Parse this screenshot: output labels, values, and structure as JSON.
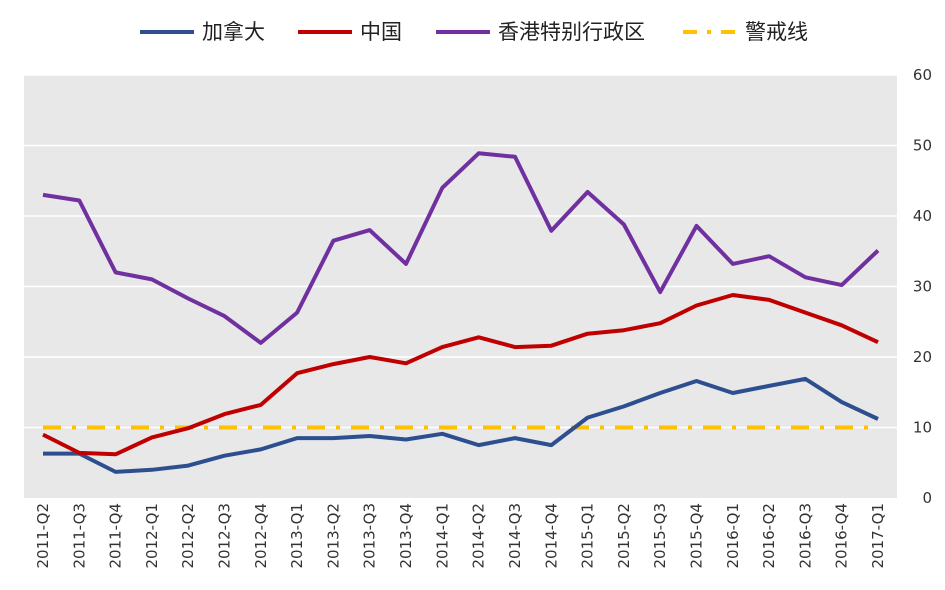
{
  "chart_data": {
    "type": "line",
    "title": "",
    "xlabel": "",
    "ylabel": "",
    "ylim": [
      0,
      60
    ],
    "yticks": [
      0,
      10,
      20,
      30,
      40,
      50,
      60
    ],
    "y_axis_side": "right",
    "grid": true,
    "legend_position": "top",
    "categories": [
      "2011-Q2",
      "2011-Q3",
      "2011-Q4",
      "2012-Q1",
      "2012-Q2",
      "2012-Q3",
      "2012-Q4",
      "2013-Q1",
      "2013-Q2",
      "2013-Q3",
      "2013-Q4",
      "2014-Q1",
      "2014-Q2",
      "2014-Q3",
      "2014-Q4",
      "2015-Q1",
      "2015-Q2",
      "2015-Q3",
      "2015-Q4",
      "2016-Q1",
      "2016-Q2",
      "2016-Q3",
      "2016-Q4",
      "2017-Q1"
    ],
    "series": [
      {
        "name": "加拿大",
        "color": "#2E4F8F",
        "style": "solid",
        "values": [
          6.3,
          6.3,
          3.7,
          4.0,
          4.6,
          6.0,
          6.9,
          8.5,
          8.5,
          8.8,
          8.3,
          9.1,
          7.5,
          8.5,
          7.5,
          11.4,
          13.0,
          14.9,
          16.6,
          14.9,
          15.9,
          16.9,
          13.6,
          11.2
        ]
      },
      {
        "name": "中国",
        "color": "#C00000",
        "style": "solid",
        "values": [
          9.0,
          6.4,
          6.2,
          8.6,
          9.9,
          11.9,
          13.2,
          17.7,
          19.0,
          20.0,
          19.1,
          21.4,
          22.8,
          21.4,
          21.6,
          23.3,
          23.8,
          24.8,
          27.3,
          28.8,
          28.1,
          26.3,
          24.5,
          22.1
        ]
      },
      {
        "name": "香港特别行政区",
        "color": "#7030A0",
        "style": "solid",
        "values": [
          43.0,
          42.2,
          32.0,
          31.0,
          28.3,
          25.8,
          22.0,
          26.3,
          36.5,
          38.0,
          33.2,
          44.0,
          48.9,
          48.4,
          37.9,
          43.4,
          38.8,
          29.2,
          38.6,
          33.2,
          34.3,
          31.3,
          30.2,
          35.1
        ]
      },
      {
        "name": "警戒线",
        "color": "#FFC000",
        "style": "dash-dot",
        "values": [
          10,
          10,
          10,
          10,
          10,
          10,
          10,
          10,
          10,
          10,
          10,
          10,
          10,
          10,
          10,
          10,
          10,
          10,
          10,
          10,
          10,
          10,
          10,
          10
        ]
      }
    ]
  }
}
